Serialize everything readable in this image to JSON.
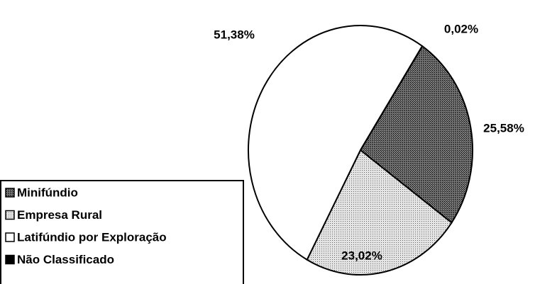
{
  "chart_data": {
    "type": "pie",
    "categories": [
      "Minifúndio",
      "Empresa Rural",
      "Latifúndio por Exploração",
      "Não Classificado"
    ],
    "values": [
      25.58,
      23.02,
      51.38,
      0.02
    ],
    "value_labels": [
      "25,58%",
      "23,02%",
      "51,38%",
      "0,02%"
    ],
    "colors": [
      "#4a4a4a",
      "#bdbdbd",
      "#ffffff",
      "#000000"
    ],
    "legend": "bottom-left"
  }
}
